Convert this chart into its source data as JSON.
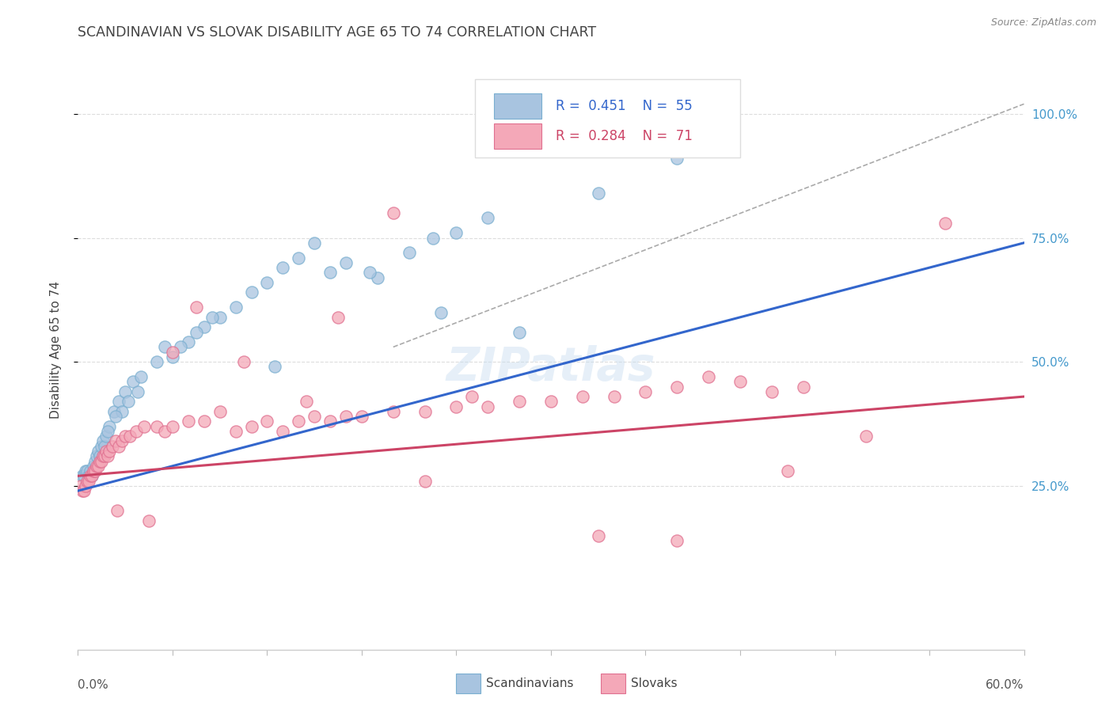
{
  "title": "SCANDINAVIAN VS SLOVAK DISABILITY AGE 65 TO 74 CORRELATION CHART",
  "source": "Source: ZipAtlas.com",
  "ylabel": "Disability Age 65 to 74",
  "xlim": [
    0,
    60
  ],
  "ylim": [
    0,
    105
  ],
  "ytick_values": [
    25,
    50,
    75,
    100
  ],
  "ytick_labels": [
    "25.0%",
    "50.0%",
    "75.0%",
    "100.0%"
  ],
  "blue_color": "#a8c4e0",
  "blue_edge": "#7aafd0",
  "pink_color": "#f4a8b8",
  "pink_edge": "#e07090",
  "blue_trend_color": "#3366cc",
  "pink_trend_color": "#cc4466",
  "diag_color": "#aaaaaa",
  "grid_color": "#dddddd",
  "right_axis_color": "#4499cc",
  "background_color": "#ffffff",
  "title_color": "#444444",
  "source_color": "#888888",
  "watermark_color": "#c8ddf0",
  "legend_R_N_color": "#3366cc",
  "scatter_blue_x": [
    0.3,
    0.4,
    0.5,
    0.6,
    0.7,
    0.8,
    0.9,
    1.0,
    1.1,
    1.2,
    1.3,
    1.4,
    1.5,
    1.6,
    1.7,
    1.8,
    2.0,
    2.3,
    2.6,
    3.0,
    3.5,
    4.0,
    5.0,
    6.0,
    7.0,
    8.0,
    9.0,
    10.0,
    11.0,
    12.0,
    13.0,
    14.0,
    15.0,
    17.0,
    19.0,
    21.0,
    24.0,
    26.0,
    18.5,
    23.0,
    7.5,
    8.5,
    3.2,
    2.8,
    1.9,
    2.4,
    3.8,
    5.5,
    22.5,
    28.0,
    33.0,
    38.0,
    6.5,
    16.0,
    12.5
  ],
  "scatter_blue_y": [
    27,
    27,
    28,
    28,
    27,
    28,
    27,
    29,
    30,
    31,
    32,
    31,
    33,
    34,
    33,
    35,
    37,
    40,
    42,
    44,
    46,
    47,
    50,
    51,
    54,
    57,
    59,
    61,
    64,
    66,
    69,
    71,
    74,
    70,
    67,
    72,
    76,
    79,
    68,
    60,
    56,
    59,
    42,
    40,
    36,
    39,
    44,
    53,
    75,
    56,
    84,
    91,
    53,
    68,
    49
  ],
  "scatter_pink_x": [
    0.2,
    0.3,
    0.4,
    0.5,
    0.6,
    0.7,
    0.8,
    0.9,
    1.0,
    1.1,
    1.2,
    1.3,
    1.4,
    1.5,
    1.6,
    1.7,
    1.8,
    1.9,
    2.0,
    2.2,
    2.4,
    2.6,
    2.8,
    3.0,
    3.3,
    3.7,
    4.2,
    5.0,
    5.5,
    6.0,
    7.0,
    8.0,
    9.0,
    10.0,
    11.0,
    12.0,
    13.0,
    14.0,
    15.0,
    16.0,
    17.0,
    18.0,
    20.0,
    22.0,
    24.0,
    26.0,
    28.0,
    30.0,
    32.0,
    34.0,
    36.0,
    38.0,
    40.0,
    42.0,
    44.0,
    46.0,
    20.0,
    22.0,
    6.0,
    7.5,
    10.5,
    14.5,
    16.5,
    25.0,
    33.0,
    38.0,
    45.0,
    50.0,
    55.0,
    2.5,
    4.5
  ],
  "scatter_pink_y": [
    25,
    24,
    24,
    25,
    26,
    26,
    27,
    27,
    28,
    28,
    29,
    29,
    30,
    30,
    31,
    31,
    32,
    31,
    32,
    33,
    34,
    33,
    34,
    35,
    35,
    36,
    37,
    37,
    36,
    37,
    38,
    38,
    40,
    36,
    37,
    38,
    36,
    38,
    39,
    38,
    39,
    39,
    40,
    40,
    41,
    41,
    42,
    42,
    43,
    43,
    44,
    45,
    47,
    46,
    44,
    45,
    80,
    26,
    52,
    61,
    50,
    42,
    59,
    43,
    15,
    14,
    28,
    35,
    78,
    20,
    18
  ],
  "trendline_blue": [
    0,
    60,
    24,
    74
  ],
  "trendline_pink": [
    0,
    60,
    27,
    43
  ],
  "diag_line": [
    20,
    60,
    53,
    102
  ]
}
